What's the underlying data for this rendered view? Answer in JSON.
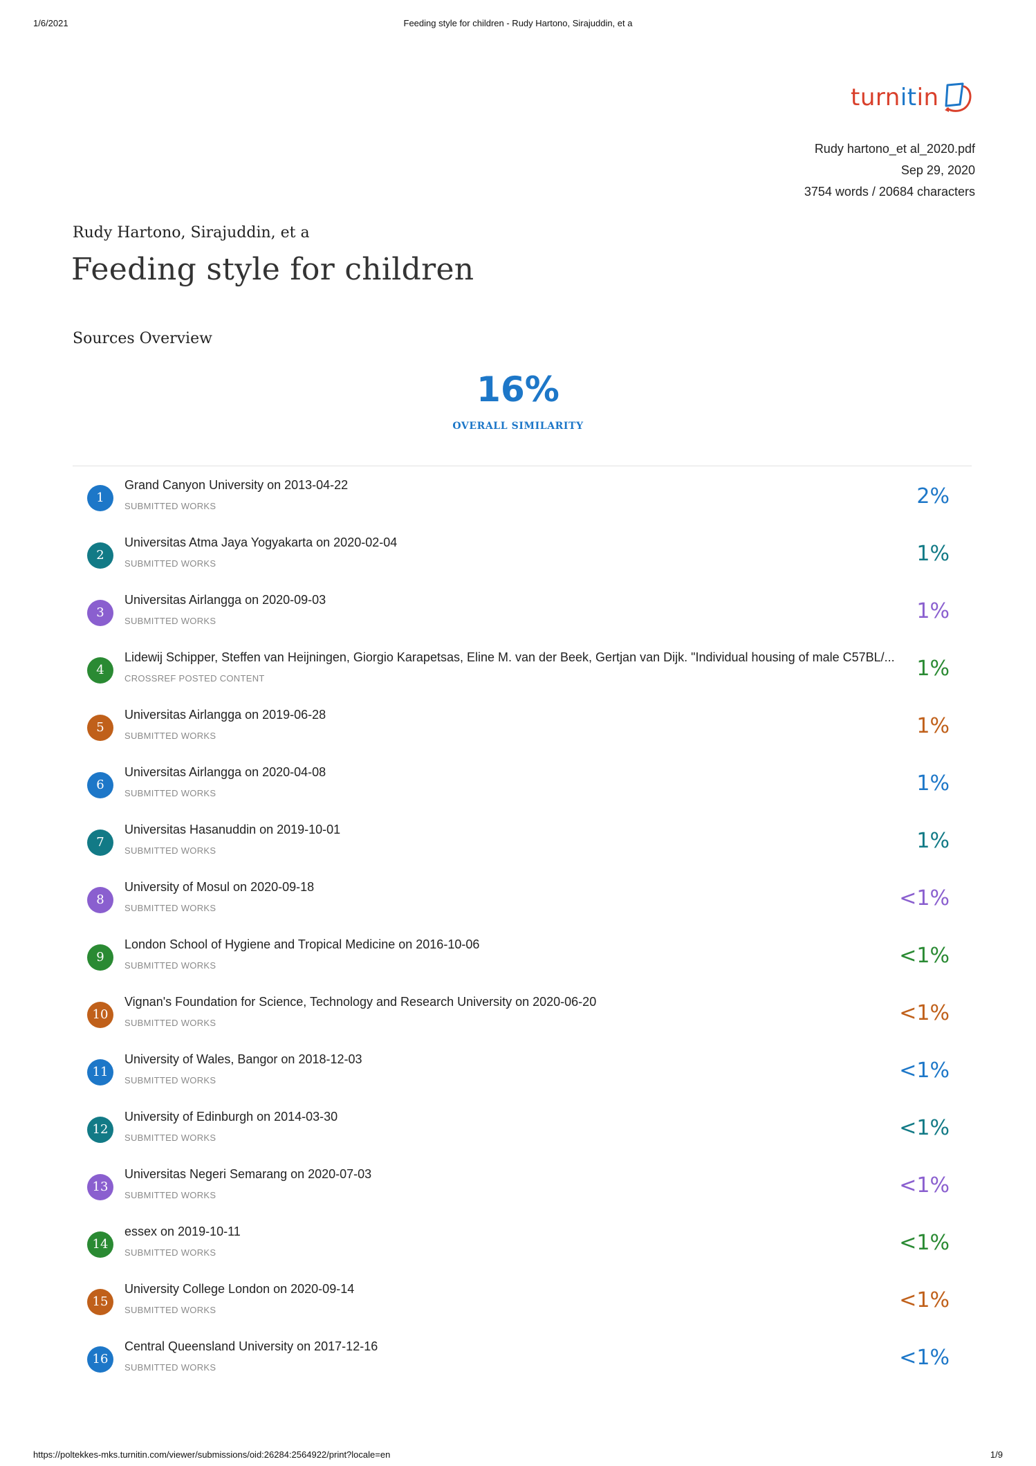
{
  "print_header": {
    "date": "1/6/2021",
    "title": "Feeding style for children - Rudy Hartono, Sirajuddin, et a"
  },
  "print_footer": {
    "url": "https://poltekkes-mks.turnitin.com/viewer/submissions/oid:26284:2564922/print?locale=en",
    "page": "1/9"
  },
  "logo": {
    "text_a": "turn",
    "text_b": "it",
    "text_c": "in",
    "icon": "turnitin-logo-icon"
  },
  "meta": {
    "filename": "Rudy hartono_et al_2020.pdf",
    "date": "Sep 29, 2020",
    "counts": "3754 words / 20684 characters"
  },
  "author": "Rudy Hartono, Sirajuddin, et a",
  "title": "Feeding style for children",
  "sources_heading": "Sources Overview",
  "overall": {
    "percent": "16%",
    "label": "OVERALL SIMILARITY"
  },
  "colors": {
    "blue": "#1d77c8",
    "teal": "#127a86",
    "purple": "#8a5fcf",
    "green": "#2a8a33",
    "orange": "#c0601a"
  },
  "sources": [
    {
      "num": "1",
      "name": "Grand Canyon University on 2013-04-22",
      "type": "SUBMITTED WORKS",
      "pct": "2%",
      "color": "#1d77c8"
    },
    {
      "num": "2",
      "name": "Universitas Atma Jaya Yogyakarta on 2020-02-04",
      "type": "SUBMITTED WORKS",
      "pct": "1%",
      "color": "#127a86"
    },
    {
      "num": "3",
      "name": "Universitas Airlangga on 2020-09-03",
      "type": "SUBMITTED WORKS",
      "pct": "1%",
      "color": "#8a5fcf"
    },
    {
      "num": "4",
      "name": "Lidewij Schipper, Steffen van Heijningen, Giorgio Karapetsas, Eline M. van der Beek, Gertjan van Dijk. \"Individual housing of male C57BL/...",
      "type": "CROSSREF POSTED CONTENT",
      "pct": "1%",
      "color": "#2a8a33"
    },
    {
      "num": "5",
      "name": "Universitas Airlangga on 2019-06-28",
      "type": "SUBMITTED WORKS",
      "pct": "1%",
      "color": "#c0601a"
    },
    {
      "num": "6",
      "name": "Universitas Airlangga on 2020-04-08",
      "type": "SUBMITTED WORKS",
      "pct": "1%",
      "color": "#1d77c8"
    },
    {
      "num": "7",
      "name": "Universitas Hasanuddin on 2019-10-01",
      "type": "SUBMITTED WORKS",
      "pct": "1%",
      "color": "#127a86"
    },
    {
      "num": "8",
      "name": "University of Mosul on 2020-09-18",
      "type": "SUBMITTED WORKS",
      "pct": "<1%",
      "color": "#8a5fcf"
    },
    {
      "num": "9",
      "name": "London School of Hygiene and Tropical Medicine on 2016-10-06",
      "type": "SUBMITTED WORKS",
      "pct": "<1%",
      "color": "#2a8a33"
    },
    {
      "num": "10",
      "name": "Vignan's Foundation for Science, Technology and Research University on 2020-06-20",
      "type": "SUBMITTED WORKS",
      "pct": "<1%",
      "color": "#c0601a"
    },
    {
      "num": "11",
      "name": "University of Wales, Bangor on 2018-12-03",
      "type": "SUBMITTED WORKS",
      "pct": "<1%",
      "color": "#1d77c8"
    },
    {
      "num": "12",
      "name": "University of Edinburgh on 2014-03-30",
      "type": "SUBMITTED WORKS",
      "pct": "<1%",
      "color": "#127a86"
    },
    {
      "num": "13",
      "name": "Universitas Negeri Semarang on 2020-07-03",
      "type": "SUBMITTED WORKS",
      "pct": "<1%",
      "color": "#8a5fcf"
    },
    {
      "num": "14",
      "name": "essex on 2019-10-11",
      "type": "SUBMITTED WORKS",
      "pct": "<1%",
      "color": "#2a8a33"
    },
    {
      "num": "15",
      "name": "University College London on 2020-09-14",
      "type": "SUBMITTED WORKS",
      "pct": "<1%",
      "color": "#c0601a"
    },
    {
      "num": "16",
      "name": "Central Queensland University on 2017-12-16",
      "type": "SUBMITTED WORKS",
      "pct": "<1%",
      "color": "#1d77c8"
    }
  ]
}
